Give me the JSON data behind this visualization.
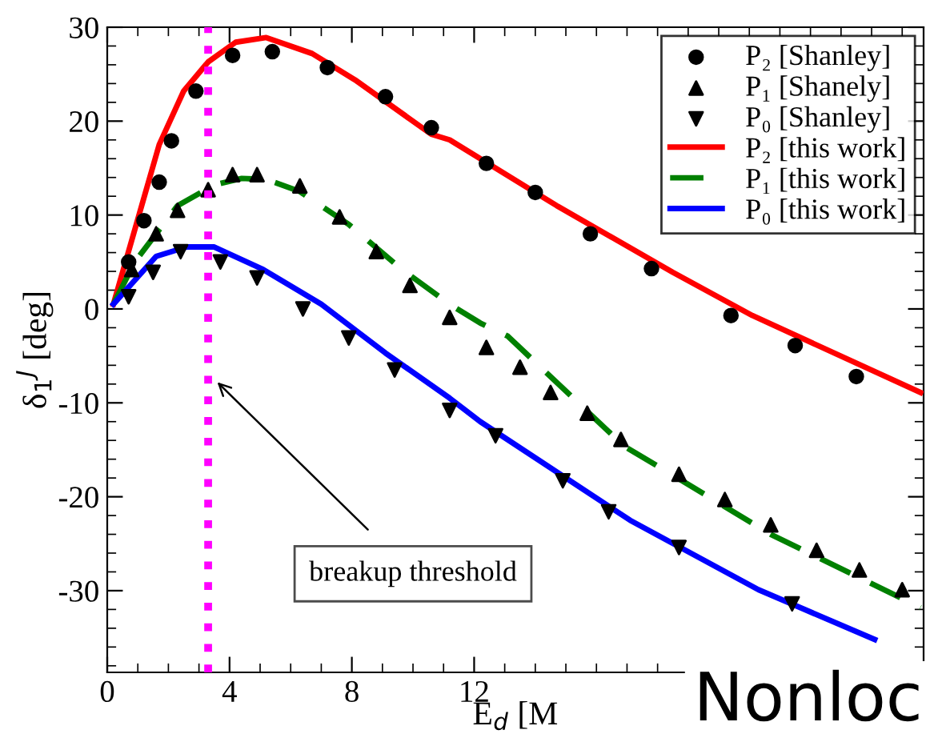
{
  "chart_data": {
    "type": "line",
    "xlabel": "E$_{d}$ [M",
    "ylabel": "δ$_{1}$$^{J}$ [deg]",
    "xlim": [
      0,
      26.7
    ],
    "ylim": [
      -38.7,
      30
    ],
    "xticks": [
      0,
      4,
      8,
      12
    ],
    "yticks": [
      -30,
      -20,
      -10,
      0,
      10,
      20,
      30
    ],
    "grid": false,
    "legend": "top right",
    "series": [
      {
        "name": "P₂ [Shanley]",
        "type": "scatter",
        "marker": "circle",
        "color": "#000000",
        "x": [
          0.7,
          1.2,
          1.7,
          2.1,
          2.9,
          4.1,
          5.4,
          7.2,
          9.1,
          10.6,
          12.4,
          14.0,
          15.8,
          17.8,
          20.4,
          22.5,
          24.5
        ],
        "values": [
          5.0,
          9.4,
          13.5,
          17.9,
          23.2,
          27.0,
          27.4,
          25.7,
          22.6,
          19.3,
          15.5,
          12.4,
          8.0,
          4.3,
          -0.7,
          -3.9,
          -7.2
        ]
      },
      {
        "name": "P₁ [Shanely]",
        "type": "scatter",
        "marker": "triangle",
        "color": "#000000",
        "x": [
          0.8,
          1.6,
          2.3,
          3.3,
          4.1,
          4.9,
          6.3,
          7.6,
          8.8,
          9.9,
          11.2,
          12.4,
          13.5,
          14.5,
          15.7,
          16.8,
          18.7,
          20.2,
          21.7,
          23.2,
          24.6,
          26.0
        ],
        "values": [
          4.2,
          8.0,
          10.5,
          12.7,
          14.3,
          14.3,
          13.1,
          9.8,
          6.1,
          2.5,
          -0.9,
          -4.1,
          -6.2,
          -8.9,
          -11.1,
          -13.9,
          -17.6,
          -20.3,
          -23.0,
          -25.7,
          -27.8,
          -29.9
        ]
      },
      {
        "name": "P₀ [Shanley]",
        "type": "scatter",
        "marker": "triangle_down",
        "color": "#000000",
        "x": [
          0.7,
          1.5,
          2.4,
          3.7,
          4.9,
          6.4,
          7.9,
          9.4,
          11.2,
          12.7,
          14.9,
          16.4,
          18.7,
          22.4
        ],
        "values": [
          1.3,
          3.9,
          6.1,
          5.0,
          3.3,
          0.0,
          -3.1,
          -6.5,
          -10.8,
          -13.5,
          -18.3,
          -21.6,
          -25.4,
          -31.4
        ]
      },
      {
        "name": "P₂ [this work]",
        "line_style": "solid",
        "color": "#ff0000",
        "x": [
          0.2,
          1.7,
          2.5,
          3.3,
          4.2,
          5.2,
          6.7,
          8.1,
          10.6,
          11.2,
          14.7,
          18.5,
          21.1,
          26.6
        ],
        "values": [
          0.5,
          17.5,
          23.2,
          26.3,
          28.4,
          28.9,
          27.2,
          24.4,
          18.6,
          18.0,
          11.0,
          3.9,
          -0.7,
          -8.9
        ]
      },
      {
        "name": "P₁ [this work]",
        "line_style": "dashed",
        "color": "#008000",
        "x": [
          0.2,
          0.9,
          2.3,
          3.5,
          4.4,
          5.2,
          6.3,
          7.9,
          9.6,
          11.2,
          12.2,
          13.1,
          16.9,
          18.5,
          21.7,
          26.6
        ],
        "values": [
          0.5,
          5.0,
          11.0,
          13.2,
          13.9,
          13.8,
          12.5,
          9.0,
          4.3,
          0.5,
          -1.5,
          -2.9,
          -14.6,
          -17.7,
          -24.0,
          -31.8
        ]
      },
      {
        "name": "P₀ [this work]",
        "line_style": "solid",
        "color": "#0000ff",
        "x": [
          0.2,
          1.6,
          2.6,
          3.5,
          5.1,
          7.0,
          9.1,
          11.2,
          12.2,
          17.1,
          21.3,
          25.1
        ],
        "values": [
          0.5,
          5.6,
          6.6,
          6.6,
          4.2,
          0.5,
          -4.7,
          -9.5,
          -12.0,
          -22.5,
          -29.9,
          -35.2
        ]
      }
    ],
    "ref_lines": [
      {
        "axis": "x",
        "value": 3.3,
        "label": "breakup threshold",
        "color": "#ff00ff",
        "line_style": "dotted"
      }
    ],
    "annotations": [
      "Nonloc"
    ]
  }
}
